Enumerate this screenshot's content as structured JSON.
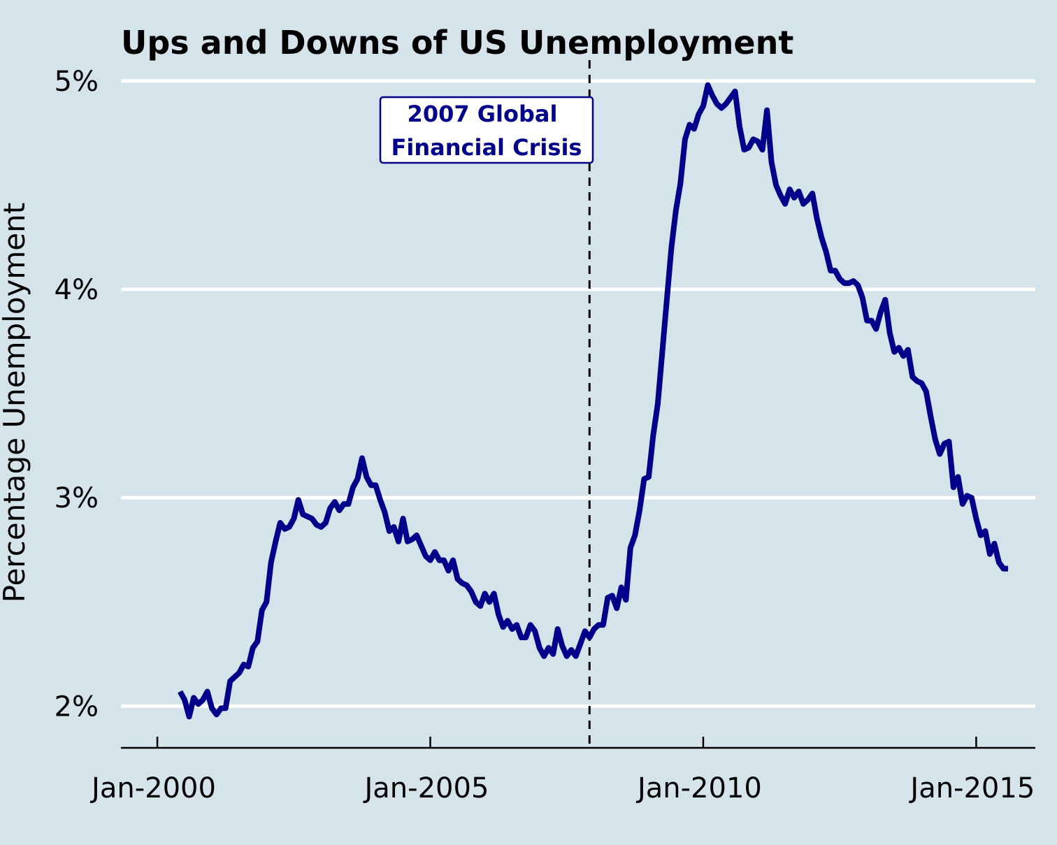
{
  "chart_data": {
    "type": "line",
    "title": "Ups and Downs of US Unemployment",
    "ylabel": "Percentage Unemployment",
    "xlabel": "",
    "x_ticks": [
      "Jan-2000",
      "Jan-2005",
      "Jan-2010",
      "Jan-2015"
    ],
    "y_ticks": [
      "2%",
      "3%",
      "4%",
      "5%"
    ],
    "ylim": [
      1.8,
      5.1
    ],
    "xlim": [
      "1999-05",
      "2016-02"
    ],
    "grid": "horizontal",
    "line_color": "#00008b",
    "annotation": {
      "lines": [
        "2007 Global",
        "Financial Crisis"
      ],
      "marker_date": "2007-12",
      "color": "#00008b"
    },
    "series": [
      {
        "values": [
          [
            "2000-06",
            2.07
          ],
          [
            "2000-07",
            2.03
          ],
          [
            "2000-08",
            1.95
          ],
          [
            "2000-09",
            2.04
          ],
          [
            "2000-10",
            2.01
          ],
          [
            "2000-11",
            2.03
          ],
          [
            "2000-12",
            2.07
          ],
          [
            "2001-01",
            1.99
          ],
          [
            "2001-02",
            1.96
          ],
          [
            "2001-03",
            1.99
          ],
          [
            "2001-04",
            1.99
          ],
          [
            "2001-05",
            2.12
          ],
          [
            "2001-06",
            2.14
          ],
          [
            "2001-07",
            2.16
          ],
          [
            "2001-08",
            2.2
          ],
          [
            "2001-09",
            2.19
          ],
          [
            "2001-10",
            2.28
          ],
          [
            "2001-11",
            2.31
          ],
          [
            "2001-12",
            2.46
          ],
          [
            "2002-01",
            2.5
          ],
          [
            "2002-02",
            2.69
          ],
          [
            "2002-03",
            2.79
          ],
          [
            "2002-04",
            2.88
          ],
          [
            "2002-05",
            2.85
          ],
          [
            "2002-06",
            2.86
          ],
          [
            "2002-07",
            2.9
          ],
          [
            "2002-08",
            2.99
          ],
          [
            "2002-09",
            2.92
          ],
          [
            "2002-10",
            2.91
          ],
          [
            "2002-11",
            2.9
          ],
          [
            "2002-12",
            2.87
          ],
          [
            "2003-01",
            2.86
          ],
          [
            "2003-02",
            2.88
          ],
          [
            "2003-03",
            2.95
          ],
          [
            "2003-04",
            2.98
          ],
          [
            "2003-05",
            2.94
          ],
          [
            "2003-06",
            2.97
          ],
          [
            "2003-07",
            2.97
          ],
          [
            "2003-08",
            3.05
          ],
          [
            "2003-09",
            3.09
          ],
          [
            "2003-10",
            3.19
          ],
          [
            "2003-11",
            3.1
          ],
          [
            "2003-12",
            3.06
          ],
          [
            "2004-01",
            3.06
          ],
          [
            "2004-02",
            2.99
          ],
          [
            "2004-03",
            2.93
          ],
          [
            "2004-04",
            2.84
          ],
          [
            "2004-05",
            2.86
          ],
          [
            "2004-06",
            2.79
          ],
          [
            "2004-07",
            2.9
          ],
          [
            "2004-08",
            2.79
          ],
          [
            "2004-09",
            2.8
          ],
          [
            "2004-10",
            2.82
          ],
          [
            "2004-11",
            2.77
          ],
          [
            "2004-12",
            2.72
          ],
          [
            "2005-01",
            2.7
          ],
          [
            "2005-02",
            2.74
          ],
          [
            "2005-03",
            2.7
          ],
          [
            "2005-04",
            2.7
          ],
          [
            "2005-05",
            2.65
          ],
          [
            "2005-06",
            2.7
          ],
          [
            "2005-07",
            2.61
          ],
          [
            "2005-08",
            2.59
          ],
          [
            "2005-09",
            2.58
          ],
          [
            "2005-10",
            2.55
          ],
          [
            "2005-11",
            2.5
          ],
          [
            "2005-12",
            2.48
          ],
          [
            "2006-01",
            2.54
          ],
          [
            "2006-02",
            2.5
          ],
          [
            "2006-03",
            2.54
          ],
          [
            "2006-04",
            2.44
          ],
          [
            "2006-05",
            2.38
          ],
          [
            "2006-06",
            2.41
          ],
          [
            "2006-07",
            2.37
          ],
          [
            "2006-08",
            2.39
          ],
          [
            "2006-09",
            2.33
          ],
          [
            "2006-10",
            2.33
          ],
          [
            "2006-11",
            2.39
          ],
          [
            "2006-12",
            2.36
          ],
          [
            "2007-01",
            2.28
          ],
          [
            "2007-02",
            2.24
          ],
          [
            "2007-03",
            2.28
          ],
          [
            "2007-04",
            2.25
          ],
          [
            "2007-05",
            2.37
          ],
          [
            "2007-06",
            2.29
          ],
          [
            "2007-07",
            2.24
          ],
          [
            "2007-08",
            2.27
          ],
          [
            "2007-09",
            2.24
          ],
          [
            "2007-10",
            2.3
          ],
          [
            "2007-11",
            2.36
          ],
          [
            "2007-12",
            2.33
          ],
          [
            "2008-01",
            2.37
          ],
          [
            "2008-02",
            2.39
          ],
          [
            "2008-03",
            2.39
          ],
          [
            "2008-04",
            2.52
          ],
          [
            "2008-05",
            2.53
          ],
          [
            "2008-06",
            2.47
          ],
          [
            "2008-07",
            2.57
          ],
          [
            "2008-08",
            2.51
          ],
          [
            "2008-09",
            2.76
          ],
          [
            "2008-10",
            2.82
          ],
          [
            "2008-11",
            2.94
          ],
          [
            "2008-12",
            3.09
          ],
          [
            "2009-01",
            3.1
          ],
          [
            "2009-02",
            3.3
          ],
          [
            "2009-03",
            3.45
          ],
          [
            "2009-04",
            3.7
          ],
          [
            "2009-05",
            3.95
          ],
          [
            "2009-06",
            4.2
          ],
          [
            "2009-07",
            4.38
          ],
          [
            "2009-08",
            4.51
          ],
          [
            "2009-09",
            4.72
          ],
          [
            "2009-10",
            4.79
          ],
          [
            "2009-11",
            4.77
          ],
          [
            "2009-12",
            4.84
          ],
          [
            "2010-01",
            4.88
          ],
          [
            "2010-02",
            4.98
          ],
          [
            "2010-03",
            4.93
          ],
          [
            "2010-04",
            4.89
          ],
          [
            "2010-05",
            4.87
          ],
          [
            "2010-06",
            4.89
          ],
          [
            "2010-07",
            4.92
          ],
          [
            "2010-08",
            4.95
          ],
          [
            "2010-09",
            4.78
          ],
          [
            "2010-10",
            4.67
          ],
          [
            "2010-11",
            4.68
          ],
          [
            "2010-12",
            4.72
          ],
          [
            "2011-01",
            4.71
          ],
          [
            "2011-02",
            4.67
          ],
          [
            "2011-03",
            4.86
          ],
          [
            "2011-04",
            4.61
          ],
          [
            "2011-05",
            4.5
          ],
          [
            "2011-06",
            4.45
          ],
          [
            "2011-07",
            4.41
          ],
          [
            "2011-08",
            4.48
          ],
          [
            "2011-09",
            4.44
          ],
          [
            "2011-10",
            4.47
          ],
          [
            "2011-11",
            4.41
          ],
          [
            "2011-12",
            4.43
          ],
          [
            "2012-01",
            4.46
          ],
          [
            "2012-02",
            4.34
          ],
          [
            "2012-03",
            4.25
          ],
          [
            "2012-04",
            4.18
          ],
          [
            "2012-05",
            4.09
          ],
          [
            "2012-06",
            4.09
          ],
          [
            "2012-07",
            4.05
          ],
          [
            "2012-08",
            4.03
          ],
          [
            "2012-09",
            4.03
          ],
          [
            "2012-10",
            4.04
          ],
          [
            "2012-11",
            4.02
          ],
          [
            "2012-12",
            3.96
          ],
          [
            "2013-01",
            3.85
          ],
          [
            "2013-02",
            3.85
          ],
          [
            "2013-03",
            3.81
          ],
          [
            "2013-04",
            3.89
          ],
          [
            "2013-05",
            3.95
          ],
          [
            "2013-06",
            3.79
          ],
          [
            "2013-07",
            3.7
          ],
          [
            "2013-08",
            3.72
          ],
          [
            "2013-09",
            3.68
          ],
          [
            "2013-10",
            3.71
          ],
          [
            "2013-11",
            3.58
          ],
          [
            "2013-12",
            3.56
          ],
          [
            "2014-01",
            3.55
          ],
          [
            "2014-02",
            3.51
          ],
          [
            "2014-03",
            3.39
          ],
          [
            "2014-04",
            3.28
          ],
          [
            "2014-05",
            3.21
          ],
          [
            "2014-06",
            3.26
          ],
          [
            "2014-07",
            3.27
          ],
          [
            "2014-08",
            3.05
          ],
          [
            "2014-09",
            3.1
          ],
          [
            "2014-10",
            2.97
          ],
          [
            "2014-11",
            3.01
          ],
          [
            "2014-12",
            3.0
          ],
          [
            "2015-01",
            2.9
          ],
          [
            "2015-02",
            2.82
          ],
          [
            "2015-03",
            2.84
          ],
          [
            "2015-04",
            2.73
          ],
          [
            "2015-05",
            2.78
          ],
          [
            "2015-06",
            2.69
          ],
          [
            "2015-07",
            2.66
          ],
          [
            "2015-08",
            2.66
          ]
        ]
      }
    ]
  }
}
